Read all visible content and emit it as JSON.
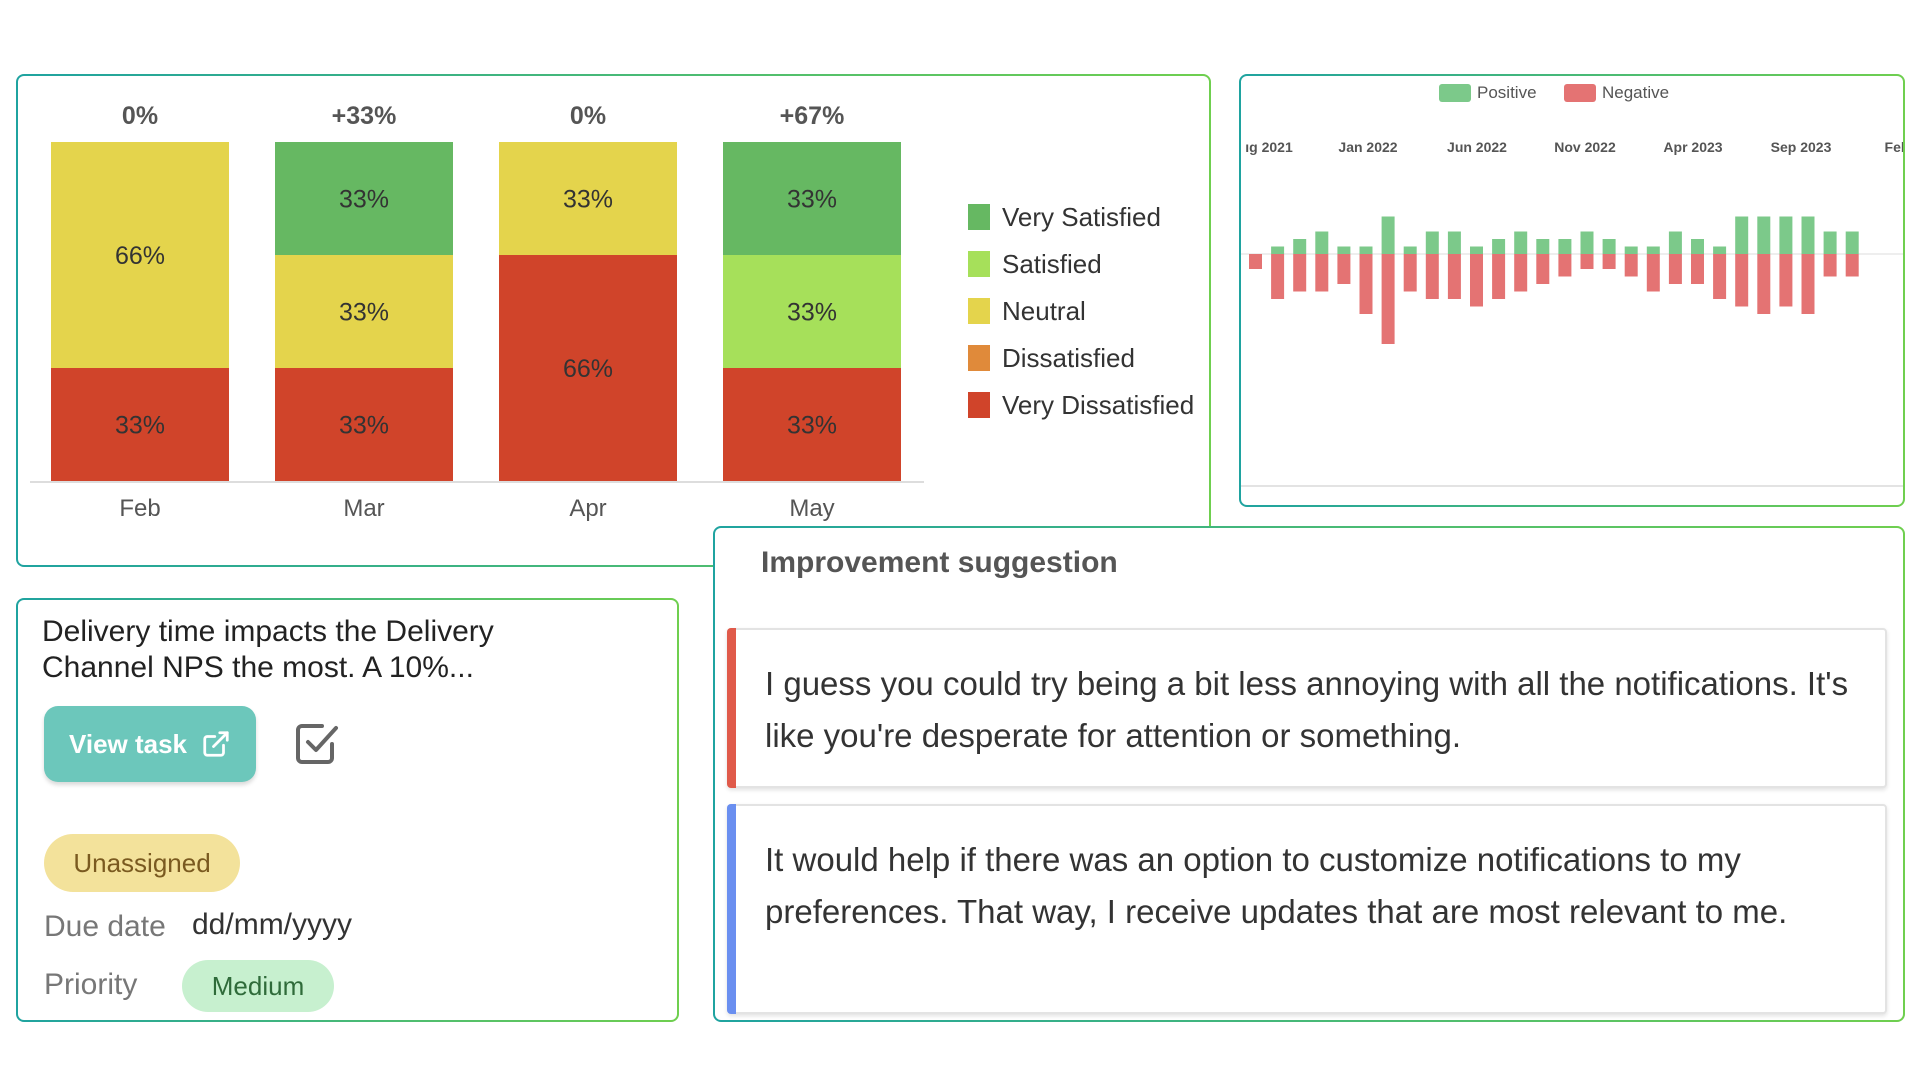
{
  "chart_data": [
    {
      "type": "bar",
      "stacked": true,
      "title": "",
      "categories": [
        "Feb",
        "Mar",
        "Apr",
        "May"
      ],
      "change_labels": [
        "0%",
        "+33%",
        "0%",
        "+67%"
      ],
      "series": [
        {
          "name": "Very Dissatisfied",
          "color": "#d0442a",
          "values": [
            33,
            33,
            66,
            33
          ],
          "labels": [
            "33%",
            "33%",
            "66%",
            "33%"
          ]
        },
        {
          "name": "Dissatisfied",
          "color": "#e08a3a",
          "values": [
            0,
            0,
            0,
            0
          ],
          "labels": [
            "",
            "",
            "",
            ""
          ]
        },
        {
          "name": "Neutral",
          "color": "#e4d44c",
          "values": [
            66,
            33,
            33,
            0
          ],
          "labels": [
            "66%",
            "33%",
            "33%",
            ""
          ]
        },
        {
          "name": "Satisfied",
          "color": "#a6e05a",
          "values": [
            0,
            0,
            0,
            33
          ],
          "labels": [
            "",
            "",
            "",
            "33%"
          ]
        },
        {
          "name": "Very Satisfied",
          "color": "#66b862",
          "values": [
            0,
            33,
            0,
            33
          ],
          "labels": [
            "",
            "33%",
            "",
            "33%"
          ]
        }
      ],
      "legend": [
        "Very Satisfied",
        "Satisfied",
        "Neutral",
        "Dissatisfied",
        "Very Dissatisfied"
      ],
      "ylim": [
        0,
        99
      ],
      "legend_position": "right"
    },
    {
      "type": "bar",
      "diverging": true,
      "title": "",
      "x_tick_labels": [
        "ıg 2021",
        "Jan 2022",
        "Jun 2022",
        "Nov 2022",
        "Apr 2023",
        "Sep 2023",
        "Feb"
      ],
      "legend": [
        {
          "name": "Positive",
          "color": "#7cc98a"
        },
        {
          "name": "Negative",
          "color": "#e47373"
        }
      ],
      "legend_position": "top",
      "positive": [
        0,
        1,
        2,
        3,
        1,
        1,
        5,
        1,
        3,
        3,
        1,
        2,
        3,
        2,
        2,
        3,
        2,
        1,
        1,
        3,
        2,
        1,
        5,
        5,
        5,
        5,
        3,
        3
      ],
      "negative": [
        2,
        6,
        5,
        5,
        4,
        8,
        12,
        5,
        6,
        6,
        7,
        6,
        5,
        4,
        3,
        2,
        2,
        3,
        5,
        4,
        4,
        6,
        7,
        8,
        7,
        8,
        3,
        3
      ],
      "ylim": [
        -12,
        5
      ]
    }
  ],
  "task": {
    "description": "Delivery time impacts the Delivery Channel NPS the most. A 10%...",
    "view_task_label": "View task",
    "status_badge": "Unassigned",
    "due_date_label": "Due date",
    "due_date_value": "dd/mm/yyyy",
    "priority_label": "Priority",
    "priority_value": "Medium"
  },
  "suggestions": {
    "title": "Improvement suggestion",
    "items": [
      {
        "text": "I guess you could try being a bit less annoying with all the notifications. It's like you're desperate for attention or something.",
        "accent": "#e05a4a"
      },
      {
        "text": "It would help if there was an option to customize notifications to my preferences. That way, I receive updates that are most relevant to me.",
        "accent": "#6a8ff0"
      }
    ]
  }
}
